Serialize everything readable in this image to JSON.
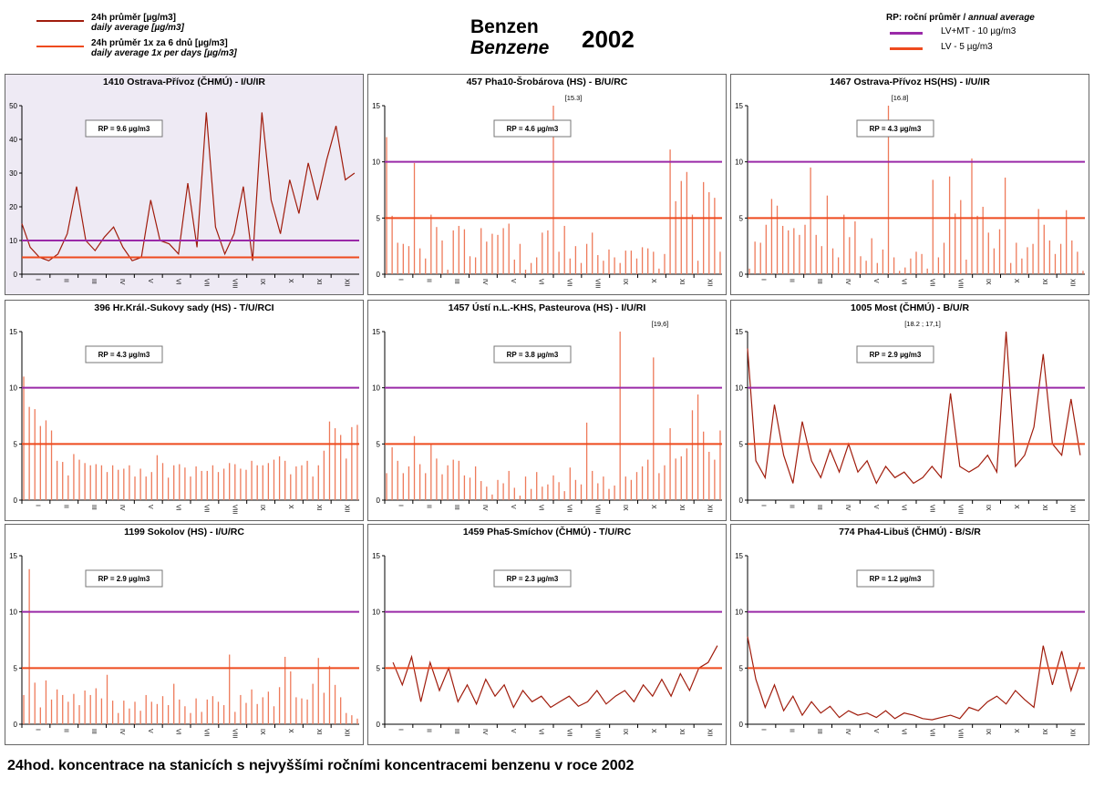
{
  "header": {
    "legend": [
      {
        "cz": "24h průměr [µg/m3]",
        "en": "daily average [µg/m3]",
        "color": "#a01c0c"
      },
      {
        "cz": "24h průměr 1x za 6 dnů [µg/m3]",
        "en": "daily average 1x per days [µg/m3]",
        "color": "#ee4a1e"
      }
    ],
    "title_cz": "Benzen",
    "title_en": "Benzene",
    "year": "2002",
    "rp_label": "RP:",
    "rp_desc_cz": "roční průměr /",
    "rp_desc_en": "annual average",
    "limits": [
      {
        "label": "LV+MT - 10 µg/m3",
        "color": "#9a2aa8"
      },
      {
        "label": "LV - 5 µg/m3",
        "color": "#ee4a1e"
      }
    ]
  },
  "colors": {
    "daily": "#a01c0c",
    "sixday": "#ee7a5a",
    "limit10": "#9a2aa8",
    "limit5": "#ee4a1e"
  },
  "caption": "24hod. koncentrace na stanicích s nejvyššími ročními koncentracemi benzenu v roce 2002",
  "chart_data": [
    {
      "type": "line",
      "title": "1410 Ostrava-Přívoz (ČHMÚ) - I/U/IR",
      "rp": "RP = 9.6 µg/m3",
      "ylim": [
        0,
        50
      ],
      "yticks": [
        0,
        10,
        20,
        30,
        40,
        50
      ],
      "months": [
        "I",
        "II",
        "III",
        "IV",
        "V",
        "VI",
        "VII",
        "VIII",
        "IX",
        "X",
        "XI",
        "XII"
      ],
      "limits": [
        10,
        5
      ],
      "shaded": true,
      "x": [
        1,
        10,
        20,
        30,
        40,
        50,
        60,
        70,
        80,
        90,
        100,
        110,
        120,
        130,
        140,
        150,
        160,
        170,
        180,
        190,
        200,
        210,
        220,
        230,
        240,
        250,
        260,
        270,
        280,
        290,
        300,
        310,
        320,
        330,
        340,
        350,
        360
      ],
      "values": [
        15,
        8,
        5,
        4,
        6,
        12,
        26,
        10,
        7,
        11,
        14,
        8,
        4,
        5,
        22,
        10,
        9,
        6,
        27,
        8,
        48,
        14,
        6,
        12,
        26,
        4,
        48,
        22,
        12,
        28,
        18,
        33,
        22,
        34,
        44,
        28,
        30
      ]
    },
    {
      "type": "bar",
      "title": "457 Pha10-Šrobárova (HS) - B/U/RC",
      "rp": "RP = 4.6 µg/m3",
      "ylim": [
        0,
        15
      ],
      "yticks": [
        0,
        5,
        10,
        15
      ],
      "months": [
        "I",
        "II",
        "III",
        "IV",
        "V",
        "VI",
        "VII",
        "VIII",
        "IX",
        "X",
        "XI",
        "XII"
      ],
      "limits": [
        10,
        5
      ],
      "annotation": "[15.3]",
      "x": [
        3,
        9,
        15,
        21,
        27,
        33,
        39,
        45,
        51,
        57,
        63,
        69,
        75,
        81,
        87,
        93,
        99,
        105,
        111,
        117,
        123,
        129,
        135,
        141,
        147,
        153,
        159,
        165,
        171,
        177,
        183,
        189,
        195,
        201,
        207,
        213,
        219,
        225,
        231,
        237,
        243,
        249,
        255,
        261,
        267,
        273,
        279,
        285,
        291,
        297,
        303,
        309,
        315,
        321,
        327,
        333,
        339,
        345,
        351,
        357,
        363
      ],
      "values": [
        12.2,
        5.2,
        2.8,
        2.7,
        2.5,
        9.9,
        2.3,
        1.4,
        5.3,
        4.2,
        3.0,
        0.4,
        3.9,
        4.3,
        4.0,
        1.6,
        1.5,
        4.1,
        2.9,
        3.6,
        3.5,
        4.1,
        4.5,
        1.3,
        2.7,
        0.4,
        1.0,
        1.5,
        3.7,
        3.9,
        15.0,
        2.0,
        4.3,
        1.4,
        2.5,
        1.0,
        2.7,
        3.7,
        1.7,
        1.2,
        2.2,
        1.5,
        1.0,
        2.1,
        2.1,
        1.4,
        2.4,
        2.3,
        2.0,
        0.5,
        1.8,
        11.1,
        6.5,
        8.3,
        9.1,
        5.3,
        1.2,
        8.2,
        7.3,
        6.8,
        2.0
      ]
    },
    {
      "type": "bar",
      "title": "1467 Ostrava-Přívoz HS(HS) - I/U/IR",
      "rp": "RP = 4.3 µg/m3",
      "ylim": [
        0,
        15
      ],
      "yticks": [
        0,
        5,
        10,
        15
      ],
      "months": [
        "I",
        "II",
        "III",
        "IV",
        "V",
        "VI",
        "VII",
        "VIII",
        "IX",
        "X",
        "XI",
        "XII"
      ],
      "limits": [
        10,
        5
      ],
      "annotation": "[16.8]",
      "x": [
        3,
        9,
        15,
        21,
        27,
        33,
        39,
        45,
        51,
        57,
        63,
        69,
        75,
        81,
        87,
        93,
        99,
        105,
        111,
        117,
        123,
        129,
        135,
        141,
        147,
        153,
        159,
        165,
        171,
        177,
        183,
        189,
        195,
        201,
        207,
        213,
        219,
        225,
        231,
        237,
        243,
        249,
        255,
        261,
        267,
        273,
        279,
        285,
        291,
        297,
        303,
        309,
        315,
        321,
        327,
        333,
        339,
        345,
        351,
        357,
        363
      ],
      "values": [
        0.5,
        2.9,
        2.8,
        4.4,
        6.7,
        6.1,
        4.3,
        3.9,
        4.1,
        3.5,
        4.4,
        9.5,
        3.5,
        2.5,
        7.0,
        2.3,
        1.5,
        5.3,
        3.3,
        4.7,
        1.6,
        1.2,
        3.2,
        1.0,
        2.2,
        15.0,
        1.5,
        0.3,
        0.6,
        1.4,
        2.0,
        1.8,
        0.5,
        8.4,
        1.5,
        2.8,
        8.7,
        5.4,
        6.6,
        1.3,
        10.3,
        5.2,
        6.0,
        3.7,
        2.3,
        4.0,
        8.6,
        1.0,
        2.8,
        1.4,
        2.4,
        2.7,
        5.8,
        4.4,
        3.0,
        1.8,
        2.7,
        5.7,
        3.0,
        2.0,
        0.3
      ]
    },
    {
      "type": "bar",
      "title": "396 Hr.Král.-Sukovy sady (HS) - T/U/RCI",
      "rp": "RP = 4.3 µg/m3",
      "ylim": [
        0,
        15
      ],
      "yticks": [
        0,
        5,
        10,
        15
      ],
      "months": [
        "I",
        "II",
        "III",
        "IV",
        "V",
        "VI",
        "VII",
        "VIII",
        "IX",
        "X",
        "XI",
        "XII"
      ],
      "limits": [
        10,
        5
      ],
      "x": [
        3,
        9,
        15,
        21,
        27,
        33,
        39,
        45,
        51,
        57,
        63,
        69,
        75,
        81,
        87,
        93,
        99,
        105,
        111,
        117,
        123,
        129,
        135,
        141,
        147,
        153,
        159,
        165,
        171,
        177,
        183,
        189,
        195,
        201,
        207,
        213,
        219,
        225,
        231,
        237,
        243,
        249,
        255,
        261,
        267,
        273,
        279,
        285,
        291,
        297,
        303,
        309,
        315,
        321,
        327,
        333,
        339,
        345,
        351,
        357,
        363
      ],
      "values": [
        11.0,
        8.3,
        8.1,
        6.6,
        7.1,
        6.2,
        3.5,
        3.4,
        2.2,
        4.1,
        3.6,
        3.3,
        3.1,
        3.2,
        3.1,
        2.5,
        3.1,
        2.7,
        2.8,
        3.1,
        2.1,
        2.8,
        2.1,
        2.5,
        4.0,
        3.3,
        2.0,
        3.1,
        3.2,
        2.9,
        2.1,
        3.0,
        2.6,
        2.6,
        3.1,
        2.5,
        2.8,
        3.3,
        3.2,
        2.8,
        2.7,
        3.5,
        3.1,
        3.1,
        3.3,
        3.6,
        3.9,
        3.5,
        2.3,
        3.0,
        3.1,
        3.5,
        2.1,
        3.1,
        4.4,
        7.0,
        6.4,
        5.8,
        3.7,
        6.5,
        6.7
      ]
    },
    {
      "type": "bar",
      "title": "1457 Ústí n.L.-KHS, Pasteurova (HS) - I/U/RI",
      "rp": "RP = 3.8 µg/m3",
      "ylim": [
        0,
        15
      ],
      "yticks": [
        0,
        5,
        10,
        15
      ],
      "months": [
        "I",
        "II",
        "III",
        "IV",
        "V",
        "VI",
        "VII",
        "VIII",
        "IX",
        "X",
        "XI",
        "XII"
      ],
      "limits": [
        10,
        5
      ],
      "annotation": "[19,6]",
      "x": [
        3,
        9,
        15,
        21,
        27,
        33,
        39,
        45,
        51,
        57,
        63,
        69,
        75,
        81,
        87,
        93,
        99,
        105,
        111,
        117,
        123,
        129,
        135,
        141,
        147,
        153,
        159,
        165,
        171,
        177,
        183,
        189,
        195,
        201,
        207,
        213,
        219,
        225,
        231,
        237,
        243,
        249,
        255,
        261,
        267,
        273,
        279,
        285,
        291,
        297,
        303,
        309,
        315,
        321,
        327,
        333,
        339,
        345,
        351,
        357,
        363
      ],
      "values": [
        2.4,
        4.7,
        3.5,
        2.4,
        3.0,
        5.7,
        3.2,
        2.4,
        5.0,
        3.7,
        2.3,
        3.1,
        3.6,
        3.5,
        2.2,
        2.0,
        3.0,
        1.7,
        1.2,
        0.5,
        1.8,
        1.5,
        2.6,
        1.1,
        0.4,
        2.1,
        1.0,
        2.5,
        1.2,
        1.4,
        2.2,
        1.6,
        0.8,
        2.9,
        1.8,
        1.4,
        6.9,
        2.6,
        1.5,
        2.1,
        1.0,
        1.3,
        15.0,
        2.1,
        1.8,
        2.5,
        3.0,
        3.6,
        12.7,
        2.4,
        3.1,
        6.4,
        3.7,
        3.9,
        4.6,
        8.0,
        9.4,
        6.1,
        4.3,
        3.6,
        6.2
      ]
    },
    {
      "type": "line",
      "title": "1005 Most (ČHMÚ) - B/U/R",
      "rp": "RP = 2.9 µg/m3",
      "ylim": [
        0,
        15
      ],
      "yticks": [
        0,
        5,
        10,
        15
      ],
      "months": [
        "I",
        "II",
        "III",
        "IV",
        "V",
        "VI",
        "VII",
        "VIII",
        "IX",
        "X",
        "XI",
        "XII"
      ],
      "limits": [
        10,
        5
      ],
      "annotation": "[18.2 ; 17,1]",
      "x": [
        1,
        10,
        20,
        30,
        40,
        50,
        60,
        70,
        80,
        90,
        100,
        110,
        120,
        130,
        140,
        150,
        160,
        170,
        180,
        190,
        200,
        210,
        220,
        230,
        240,
        250,
        260,
        270,
        280,
        290,
        300,
        310,
        320,
        330,
        340,
        350,
        360
      ],
      "values": [
        13.5,
        3.5,
        2.0,
        8.5,
        4.0,
        1.5,
        7.0,
        3.5,
        2.0,
        4.5,
        2.5,
        5.0,
        2.5,
        3.5,
        1.5,
        3.0,
        2.0,
        2.5,
        1.5,
        2.0,
        3.0,
        2.0,
        9.5,
        3.0,
        2.5,
        3.0,
        4.0,
        2.5,
        15.0,
        3.0,
        4.0,
        6.5,
        13.0,
        5.0,
        4.0,
        9.0,
        4.0
      ]
    },
    {
      "type": "bar",
      "title": "1199 Sokolov (HS) - I/U/RC",
      "rp": "RP = 2.9 µg/m3",
      "ylim": [
        0,
        15
      ],
      "yticks": [
        0,
        5,
        10,
        15
      ],
      "months": [
        "I",
        "II",
        "III",
        "IV",
        "V",
        "VI",
        "VII",
        "VIII",
        "IX",
        "X",
        "XI",
        "XII"
      ],
      "limits": [
        10,
        5
      ],
      "x": [
        3,
        9,
        15,
        21,
        27,
        33,
        39,
        45,
        51,
        57,
        63,
        69,
        75,
        81,
        87,
        93,
        99,
        105,
        111,
        117,
        123,
        129,
        135,
        141,
        147,
        153,
        159,
        165,
        171,
        177,
        183,
        189,
        195,
        201,
        207,
        213,
        219,
        225,
        231,
        237,
        243,
        249,
        255,
        261,
        267,
        273,
        279,
        285,
        291,
        297,
        303,
        309,
        315,
        321,
        327,
        333,
        339,
        345,
        351,
        357,
        363
      ],
      "values": [
        2.6,
        13.8,
        3.7,
        1.5,
        3.9,
        2.2,
        3.1,
        2.6,
        2.0,
        2.7,
        1.7,
        3.0,
        2.6,
        3.2,
        2.3,
        4.4,
        2.1,
        1.0,
        2.1,
        1.4,
        2.0,
        1.2,
        2.6,
        2.0,
        1.8,
        2.5,
        1.7,
        3.6,
        2.2,
        1.6,
        1.0,
        2.3,
        1.1,
        2.2,
        2.5,
        2.0,
        1.7,
        6.2,
        1.1,
        2.6,
        1.9,
        3.1,
        1.8,
        2.4,
        2.9,
        1.6,
        3.3,
        6.0,
        4.7,
        2.4,
        2.3,
        2.2,
        3.6,
        5.9,
        2.8,
        5.2,
        3.5,
        2.4,
        1.0,
        0.8,
        0.5
      ]
    },
    {
      "type": "line",
      "title": "1459 Pha5-Smíchov (ČHMÚ) - T/U/RC",
      "rp": "RP = 2.3 µg/m3",
      "ylim": [
        0,
        15
      ],
      "yticks": [
        0,
        5,
        10,
        15
      ],
      "months": [
        "I",
        "II",
        "III",
        "IV",
        "V",
        "VI",
        "VII",
        "VIII",
        "IX",
        "X",
        "XI",
        "XII"
      ],
      "limits": [
        10,
        5
      ],
      "x": [
        10,
        20,
        30,
        40,
        50,
        60,
        70,
        80,
        90,
        100,
        110,
        120,
        130,
        140,
        150,
        160,
        170,
        180,
        190,
        200,
        210,
        220,
        230,
        240,
        250,
        260,
        270,
        280,
        290,
        300,
        310,
        320,
        330,
        340,
        350,
        360
      ],
      "values": [
        5.5,
        3.5,
        6.0,
        2.0,
        5.5,
        3.0,
        5.0,
        2.0,
        3.5,
        1.8,
        4.0,
        2.5,
        3.5,
        1.5,
        3.0,
        2.0,
        2.5,
        1.5,
        2.0,
        2.5,
        1.6,
        2.0,
        3.0,
        1.8,
        2.5,
        3.0,
        2.0,
        3.5,
        2.5,
        4.0,
        2.5,
        4.5,
        3.0,
        5.0,
        5.5,
        7.0
      ]
    },
    {
      "type": "line",
      "title": "774 Pha4-Libuš (ČHMÚ) - B/S/R",
      "rp": "RP = 1.2 µg/m3",
      "ylim": [
        0,
        15
      ],
      "yticks": [
        0,
        5,
        10,
        15
      ],
      "months": [
        "I",
        "II",
        "III",
        "IV",
        "V",
        "VI",
        "VII",
        "VIII",
        "IX",
        "X",
        "XI",
        "XII"
      ],
      "limits": [
        10,
        5
      ],
      "x": [
        1,
        10,
        20,
        30,
        40,
        50,
        60,
        70,
        80,
        90,
        100,
        110,
        120,
        130,
        140,
        150,
        160,
        170,
        180,
        190,
        200,
        210,
        220,
        230,
        240,
        250,
        260,
        270,
        280,
        290,
        300,
        310,
        320,
        330,
        340,
        350,
        360
      ],
      "values": [
        7.8,
        4.0,
        1.5,
        3.5,
        1.2,
        2.5,
        0.8,
        2.0,
        1.0,
        1.6,
        0.6,
        1.2,
        0.8,
        1.0,
        0.6,
        1.2,
        0.5,
        1.0,
        0.8,
        0.5,
        0.4,
        0.6,
        0.8,
        0.5,
        1.5,
        1.2,
        2.0,
        2.5,
        1.8,
        3.0,
        2.2,
        1.5,
        7.0,
        3.5,
        6.5,
        3.0,
        5.5
      ]
    }
  ]
}
